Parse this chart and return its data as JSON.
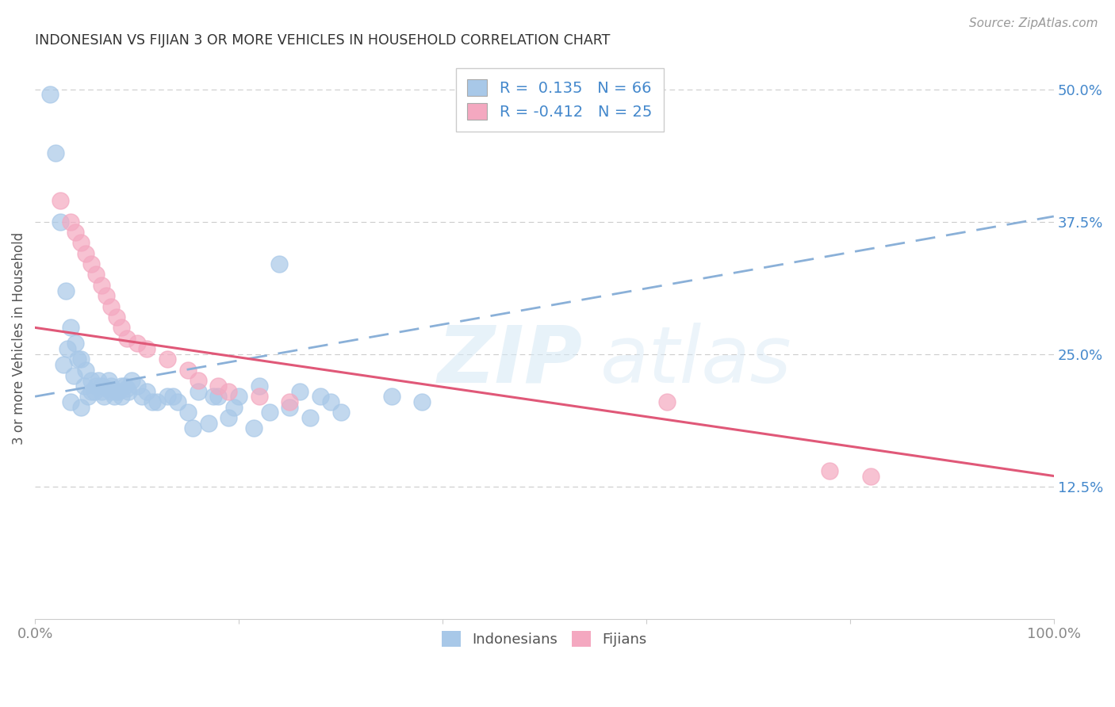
{
  "title": "INDONESIAN VS FIJIAN 3 OR MORE VEHICLES IN HOUSEHOLD CORRELATION CHART",
  "source": "Source: ZipAtlas.com",
  "ylabel": "3 or more Vehicles in Household",
  "xlim": [
    0,
    100
  ],
  "ylim": [
    0,
    53
  ],
  "y_ticks": [
    12.5,
    25.0,
    37.5,
    50.0
  ],
  "y_tick_labels": [
    "12.5%",
    "25.0%",
    "37.5%",
    "50.0%"
  ],
  "indonesian_R": "0.135",
  "indonesian_N": 66,
  "fijian_R": "-0.412",
  "fijian_N": 25,
  "blue_scatter_color": "#a8c8e8",
  "pink_scatter_color": "#f4a8c0",
  "blue_line_color": "#8ab0d8",
  "pink_line_color": "#e05878",
  "indonesian_x": [
    1.5,
    2.0,
    2.5,
    3.0,
    3.5,
    4.0,
    4.5,
    5.0,
    5.5,
    6.0,
    6.5,
    7.0,
    7.5,
    8.0,
    8.5,
    9.0,
    9.5,
    10.0,
    2.8,
    3.2,
    3.8,
    4.2,
    4.8,
    5.2,
    5.8,
    6.2,
    6.8,
    7.2,
    7.8,
    8.2,
    8.8,
    9.2,
    3.5,
    4.5,
    5.5,
    6.5,
    7.5,
    8.5,
    10.5,
    11.0,
    12.0,
    13.0,
    14.0,
    15.0,
    16.0,
    17.0,
    18.0,
    19.0,
    20.0,
    22.0,
    24.0,
    26.0,
    28.0,
    30.0,
    35.0,
    38.0,
    11.5,
    13.5,
    15.5,
    17.5,
    19.5,
    21.5,
    23.0,
    25.0,
    27.0,
    29.0
  ],
  "indonesian_y": [
    49.5,
    44.0,
    37.5,
    31.0,
    27.5,
    26.0,
    24.5,
    23.5,
    22.5,
    22.0,
    21.5,
    21.8,
    22.0,
    21.5,
    22.0,
    21.8,
    22.5,
    22.0,
    24.0,
    25.5,
    23.0,
    24.5,
    22.0,
    21.0,
    21.5,
    22.5,
    21.0,
    22.5,
    21.0,
    21.5,
    22.0,
    21.5,
    20.5,
    20.0,
    21.5,
    22.0,
    21.5,
    21.0,
    21.0,
    21.5,
    20.5,
    21.0,
    20.5,
    19.5,
    21.5,
    18.5,
    21.0,
    19.0,
    21.0,
    22.0,
    33.5,
    21.5,
    21.0,
    19.5,
    21.0,
    20.5,
    20.5,
    21.0,
    18.0,
    21.0,
    20.0,
    18.0,
    19.5,
    20.0,
    19.0,
    20.5
  ],
  "fijian_x": [
    2.5,
    3.5,
    4.0,
    4.5,
    5.0,
    5.5,
    6.0,
    6.5,
    7.0,
    7.5,
    8.0,
    8.5,
    9.0,
    10.0,
    11.0,
    13.0,
    15.0,
    18.0,
    22.0,
    62.0,
    78.0,
    82.0,
    25.0,
    16.0,
    19.0
  ],
  "fijian_y": [
    39.5,
    37.5,
    36.5,
    35.5,
    34.5,
    33.5,
    32.5,
    31.5,
    30.5,
    29.5,
    28.5,
    27.5,
    26.5,
    26.0,
    25.5,
    24.5,
    23.5,
    22.0,
    21.0,
    20.5,
    14.0,
    13.5,
    20.5,
    22.5,
    21.5
  ],
  "ind_trend": [
    0,
    100,
    21.0,
    38.0
  ],
  "fij_trend": [
    0,
    100,
    27.5,
    13.5
  ],
  "watermark_zip": "ZIP",
  "watermark_atlas": "atlas",
  "legend_label_indonesian": "Indonesians",
  "legend_label_fijian": "Fijians",
  "background_color": "#ffffff",
  "grid_color": "#cccccc",
  "tick_color_x": "#888888",
  "tick_color_y_right": "#4488cc",
  "title_color": "#333333",
  "ylabel_color": "#555555",
  "source_color": "#999999"
}
